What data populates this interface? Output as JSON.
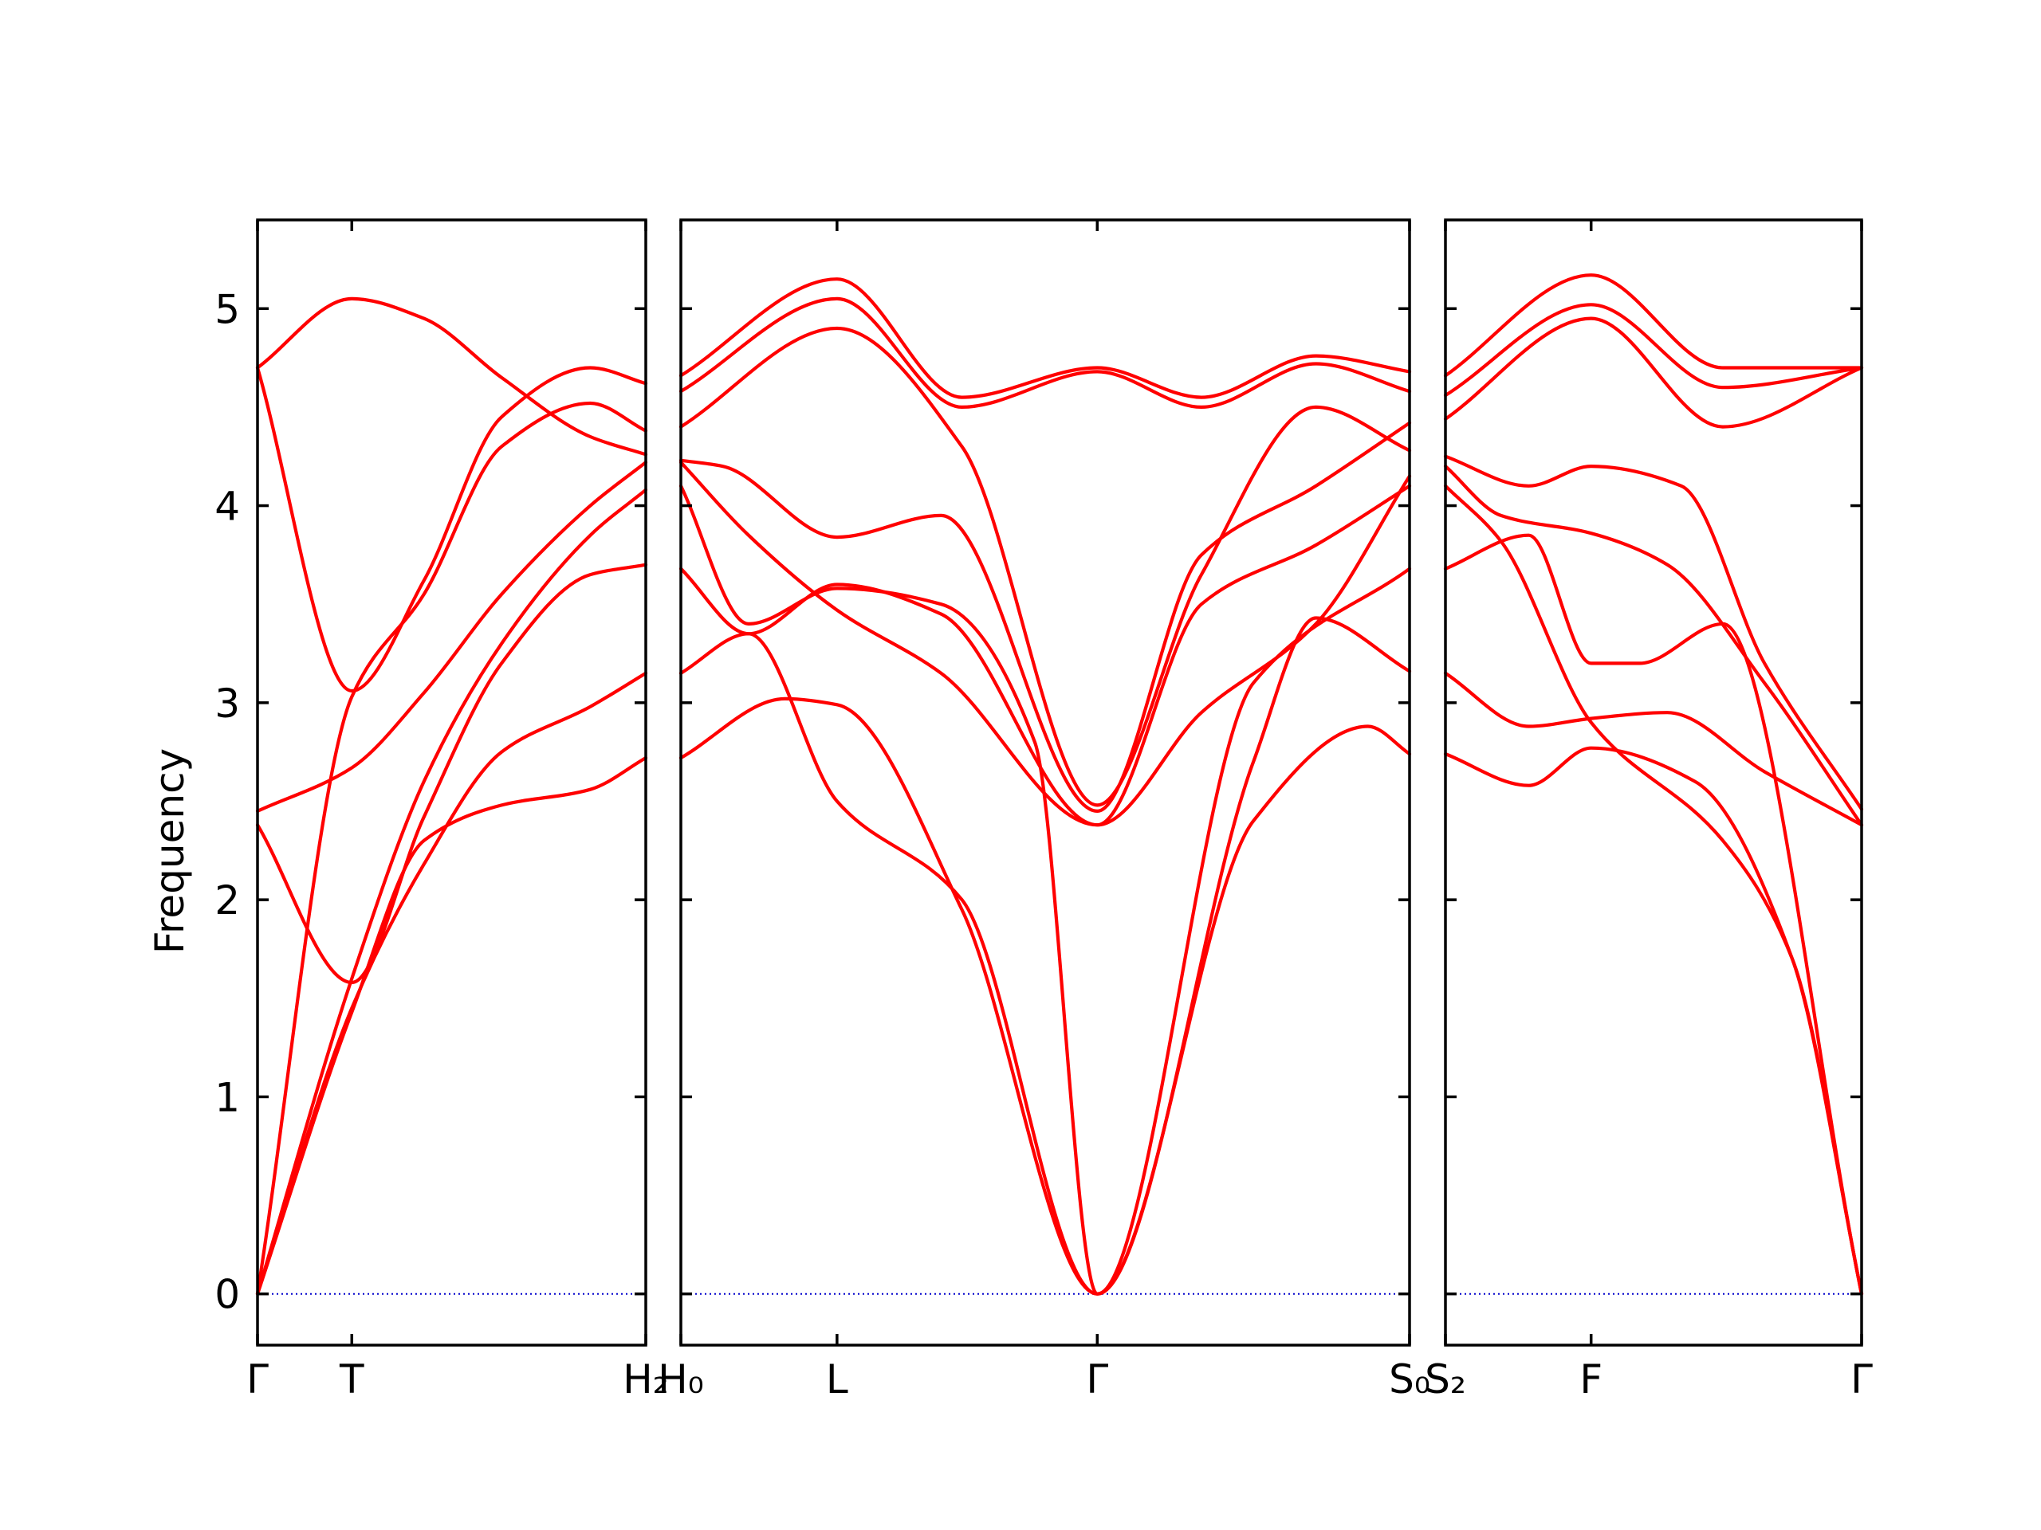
{
  "chart_data": {
    "type": "line",
    "title": "",
    "ylabel": "Frequency",
    "xlabel": "",
    "ylim": [
      -0.26,
      5.45
    ],
    "yticks": [
      0,
      1,
      2,
      3,
      4,
      5
    ],
    "grid": false,
    "series_color": "#ff0000",
    "zero_line_color": "#0000cc",
    "panels": [
      {
        "name": "panel-1",
        "xlim": [
          0,
          3.5
        ],
        "xticks": [
          {
            "x": 0,
            "label": "Γ"
          },
          {
            "x": 0.85,
            "label": "T"
          },
          {
            "x": 3.5,
            "label": "H₂"
          }
        ],
        "series": [
          {
            "x": [
              0,
              0.85,
              1.5,
              2.2,
              3.0,
              3.5
            ],
            "y": [
              0.0,
              1.43,
              2.3,
              2.48,
              2.56,
              2.72
            ]
          },
          {
            "x": [
              0,
              0.85,
              1.5,
              2.2,
              3.0,
              3.5
            ],
            "y": [
              0.0,
              1.45,
              2.18,
              2.75,
              2.98,
              3.15
            ]
          },
          {
            "x": [
              0,
              0.85,
              1.5,
              2.2,
              3.0,
              3.5
            ],
            "y": [
              2.38,
              1.58,
              2.42,
              3.2,
              3.65,
              3.7
            ]
          },
          {
            "x": [
              0,
              0.85,
              1.5,
              2.2,
              3.0,
              3.5
            ],
            "y": [
              0.0,
              1.6,
              2.6,
              3.3,
              3.85,
              4.08
            ]
          },
          {
            "x": [
              0,
              0.85,
              1.5,
              2.2,
              3.0,
              3.5
            ],
            "y": [
              2.45,
              2.67,
              3.05,
              3.55,
              4.0,
              4.22
            ]
          },
          {
            "x": [
              0,
              0.85,
              1.5,
              2.2,
              3.0,
              3.5
            ],
            "y": [
              0.0,
              3.03,
              3.55,
              4.3,
              4.52,
              4.38
            ]
          },
          {
            "x": [
              0,
              0.85,
              1.5,
              2.2,
              3.0,
              3.5
            ],
            "y": [
              4.7,
              3.06,
              3.62,
              4.45,
              4.7,
              4.62
            ]
          },
          {
            "x": [
              0,
              0.85,
              1.5,
              2.2,
              3.0,
              3.5
            ],
            "y": [
              4.7,
              5.05,
              4.95,
              4.65,
              4.35,
              4.26
            ]
          }
        ]
      },
      {
        "name": "panel-2",
        "xlim": [
          0,
          7.0
        ],
        "xticks": [
          {
            "x": 0,
            "label": "H₀"
          },
          {
            "x": 1.5,
            "label": "L"
          },
          {
            "x": 4.0,
            "label": "Γ"
          },
          {
            "x": 7.0,
            "label": "S₀"
          }
        ],
        "series": [
          {
            "x": [
              0,
              1.0,
              1.5,
              2.7,
              4.0,
              5.5,
              6.6,
              7.0
            ],
            "y": [
              2.72,
              3.02,
              2.99,
              1.95,
              0.0,
              2.4,
              2.88,
              2.74
            ]
          },
          {
            "x": [
              0,
              0.65,
              1.5,
              2.7,
              4.0,
              5.5,
              6.1,
              7.0
            ],
            "y": [
              3.15,
              3.35,
              2.5,
              2.0,
              0.0,
              2.7,
              3.43,
              3.16
            ]
          },
          {
            "x": [
              0,
              0.65,
              1.5,
              2.5,
              3.4,
              4.0,
              5.5,
              7.0
            ],
            "y": [
              4.1,
              3.4,
              3.58,
              3.5,
              2.8,
              0.0,
              3.1,
              3.68
            ]
          },
          {
            "x": [
              0,
              0.65,
              1.5,
              2.5,
              4.0,
              5.0,
              6.1,
              7.0
            ],
            "y": [
              3.68,
              3.35,
              3.6,
              3.45,
              2.38,
              2.95,
              3.4,
              4.15
            ]
          },
          {
            "x": [
              0,
              0.65,
              1.5,
              2.5,
              4.0,
              5.0,
              6.1,
              7.0
            ],
            "y": [
              4.22,
              3.85,
              3.47,
              3.15,
              2.38,
              3.5,
              3.8,
              4.1
            ]
          },
          {
            "x": [
              0,
              0.4,
              1.5,
              2.5,
              4.0,
              5.0,
              6.1,
              7.0
            ],
            "y": [
              4.23,
              4.2,
              3.84,
              3.95,
              2.45,
              3.75,
              4.1,
              4.42
            ]
          },
          {
            "x": [
              0,
              1.5,
              2.7,
              4.0,
              5.0,
              6.1,
              7.0
            ],
            "y": [
              4.4,
              4.9,
              4.3,
              2.48,
              3.65,
              4.5,
              4.28
            ]
          },
          {
            "x": [
              0,
              1.5,
              2.7,
              4.0,
              5.0,
              6.1,
              7.0
            ],
            "y": [
              4.58,
              5.05,
              4.5,
              4.68,
              4.5,
              4.72,
              4.58
            ]
          },
          {
            "x": [
              0,
              1.5,
              2.7,
              4.0,
              5.0,
              6.1,
              7.0
            ],
            "y": [
              4.66,
              5.15,
              4.55,
              4.7,
              4.55,
              4.76,
              4.68
            ]
          }
        ]
      },
      {
        "name": "panel-3",
        "xlim": [
          0,
          3.0
        ],
        "xticks": [
          {
            "x": 0,
            "label": "S₂"
          },
          {
            "x": 1.05,
            "label": "F"
          },
          {
            "x": 3.0,
            "label": "Γ"
          }
        ],
        "series": [
          {
            "x": [
              0,
              0.6,
              1.05,
              1.8,
              2.5,
              3.0
            ],
            "y": [
              2.74,
              2.58,
              2.77,
              2.6,
              1.7,
              0.0
            ]
          },
          {
            "x": [
              0,
              0.6,
              1.05,
              1.6,
              2.3,
              3.0
            ],
            "y": [
              3.15,
              2.88,
              2.92,
              2.95,
              2.65,
              2.38
            ]
          },
          {
            "x": [
              0,
              0.4,
              1.05,
              2.0,
              2.5,
              3.0
            ],
            "y": [
              4.1,
              3.82,
              2.9,
              2.3,
              1.7,
              0.0
            ]
          },
          {
            "x": [
              0,
              0.6,
              1.05,
              1.4,
              2.0,
              3.0
            ],
            "y": [
              3.68,
              3.85,
              3.2,
              3.2,
              3.4,
              0.0
            ]
          },
          {
            "x": [
              0,
              0.4,
              1.05,
              1.6,
              2.3,
              3.0
            ],
            "y": [
              4.2,
              3.95,
              3.86,
              3.7,
              3.1,
              2.38
            ]
          },
          {
            "x": [
              0,
              0.6,
              1.05,
              1.7,
              2.3,
              3.0
            ],
            "y": [
              4.25,
              4.1,
              4.2,
              4.1,
              3.2,
              2.46
            ]
          },
          {
            "x": [
              0,
              1.05,
              2.0,
              3.0
            ],
            "y": [
              4.44,
              4.95,
              4.4,
              4.7
            ]
          },
          {
            "x": [
              0,
              1.05,
              2.0,
              3.0
            ],
            "y": [
              4.56,
              5.02,
              4.6,
              4.7
            ]
          },
          {
            "x": [
              0,
              1.05,
              2.0,
              3.0
            ],
            "y": [
              4.66,
              5.17,
              4.7,
              4.7
            ]
          }
        ]
      }
    ]
  }
}
